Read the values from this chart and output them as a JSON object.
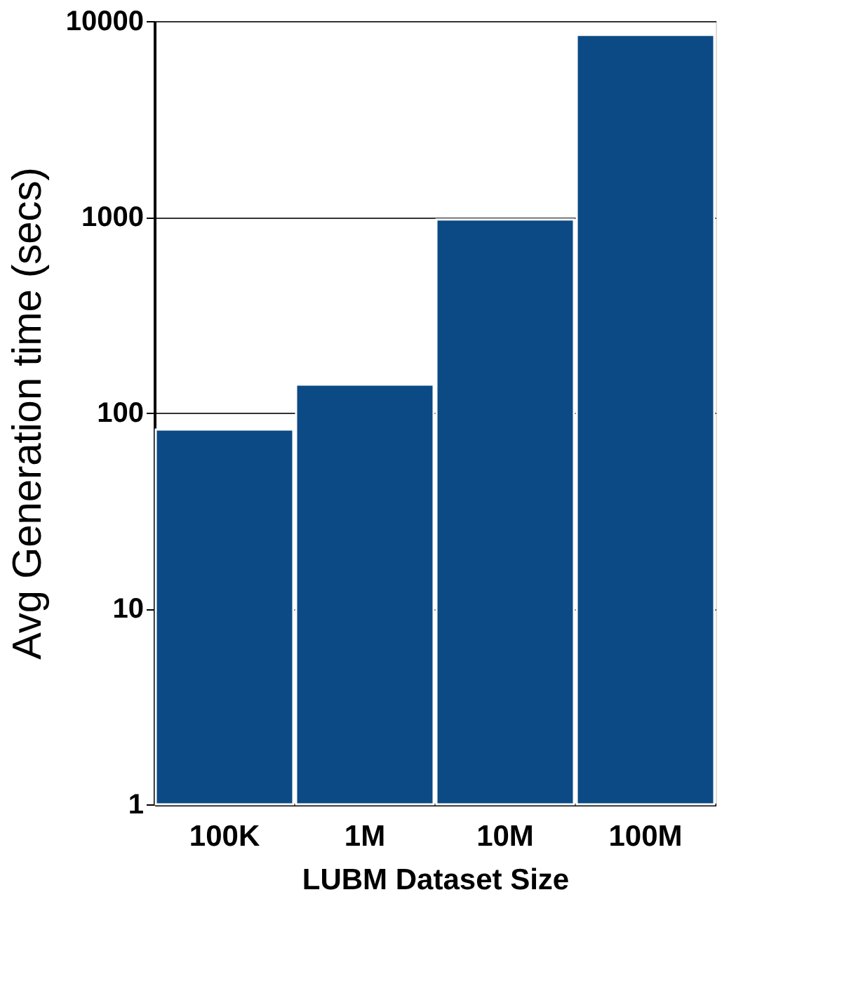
{
  "chart_data": {
    "type": "bar",
    "xlabel": "LUBM Dataset Size",
    "ylabel": "Avg Generation time (secs)",
    "categories": [
      "100K",
      "1M",
      "10M",
      "100M"
    ],
    "series": [
      {
        "color": "#0b4a85",
        "values": [
          82,
          139,
          970,
          8500
        ]
      }
    ],
    "log": "y",
    "ylim": [
      1,
      10000
    ],
    "yticks": [
      1,
      10,
      100,
      1000,
      10000
    ],
    "grid": "y",
    "legend": false
  }
}
